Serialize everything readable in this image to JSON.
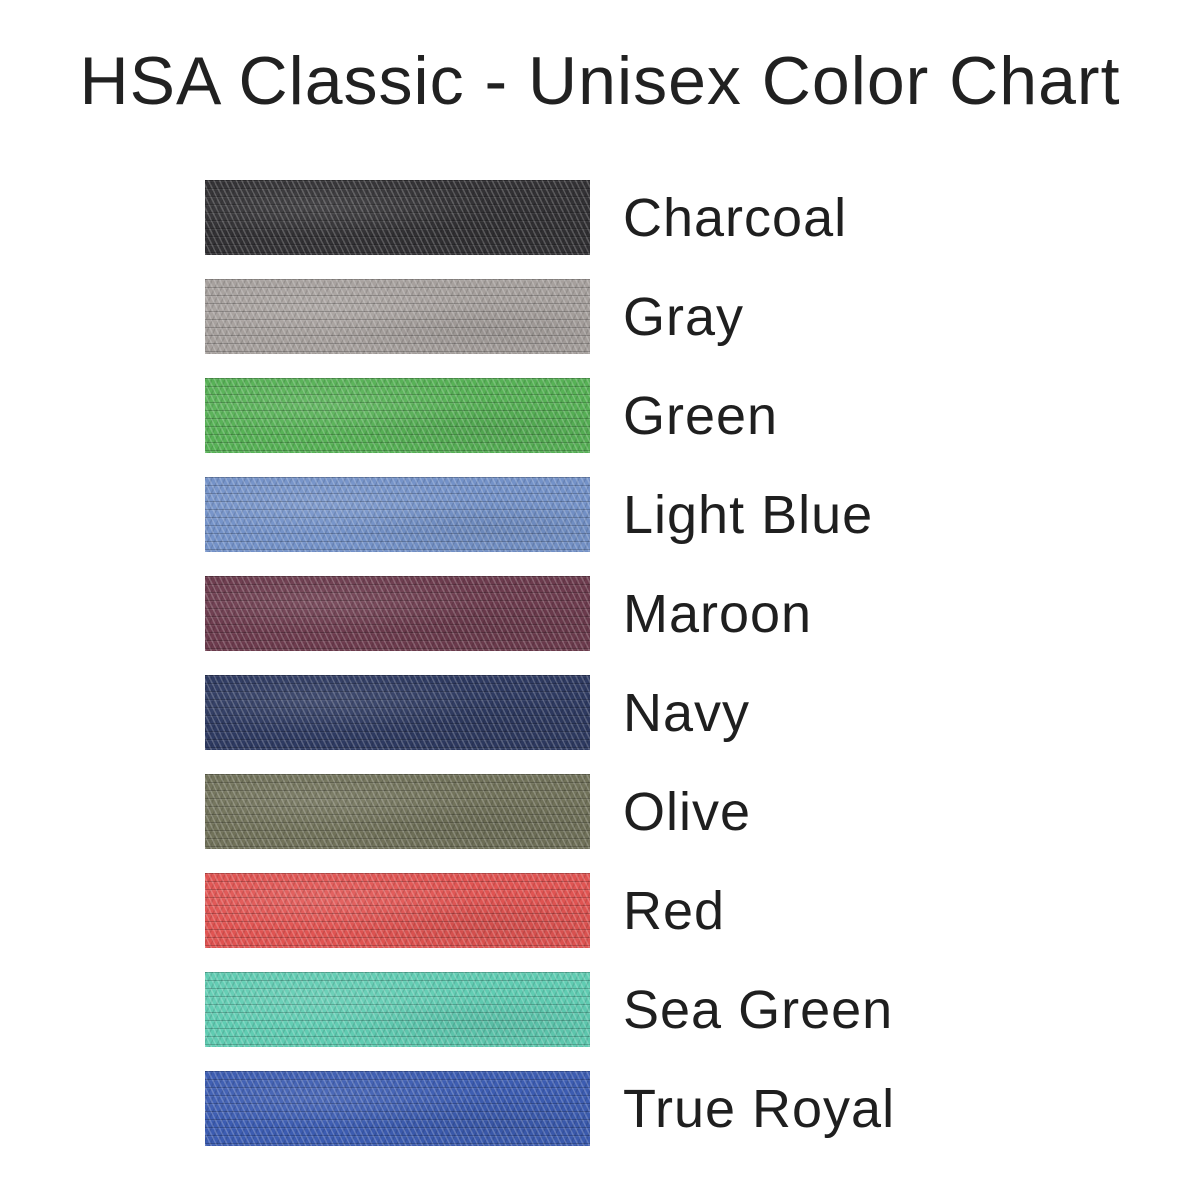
{
  "header": {
    "title": "HSA Classic - Unisex Color Chart",
    "text_color": "#212121"
  },
  "chart_data": {
    "type": "table",
    "title": "HSA Classic - Unisex Color Chart",
    "columns": [
      "fabric_swatch",
      "color_name"
    ],
    "legend_position": "right-of-swatch",
    "rows": [
      {
        "label": "Charcoal",
        "hex": "#323134"
      },
      {
        "label": "Gray",
        "hex": "#a6a09d"
      },
      {
        "label": "Green",
        "hex": "#57b156"
      },
      {
        "label": "Light Blue",
        "hex": "#7492c8"
      },
      {
        "label": "Maroon",
        "hex": "#6c3b4d"
      },
      {
        "label": "Navy",
        "hex": "#2e3a61"
      },
      {
        "label": "Olive",
        "hex": "#71725a"
      },
      {
        "label": "Red",
        "hex": "#e05452"
      },
      {
        "label": "Sea Green",
        "hex": "#60ccb2"
      },
      {
        "label": "True Royal",
        "hex": "#3c5cb1"
      }
    ]
  }
}
